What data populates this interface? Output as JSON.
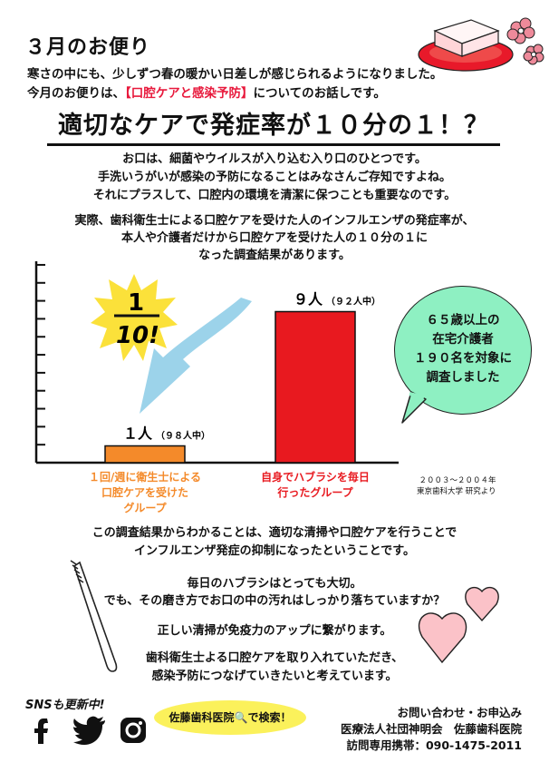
{
  "header": {
    "month_title": "３月のお便り",
    "intro_line1": "寒さの中にも、少しずつ春の暖かい日差しが感じられるようになりました。",
    "intro_line2_pre": "今月のお便りは、",
    "intro_line2_highlight": "【口腔ケアと感染予防】",
    "intro_line2_post": "についてのお話しです。"
  },
  "headline": "適切なケアで発症率が１０分の１！？",
  "body_paragraph1": [
    "お口は、細菌やウイルスが入り込む入り口のひとつです。",
    "手洗いうがいが感染の予防になることはみなさんご存知ですよね。",
    "それにプラスして、口腔内の環境を清潔に保つことも重要なのです。"
  ],
  "body_paragraph2": [
    "実際、歯科衛生士による口腔ケアを受けた人のインフルエンザの発症率が、",
    "本人や介護者だけから口腔ケアを受けた人の１０分の１に",
    "なった調査結果があります。"
  ],
  "burst": {
    "numerator": "1",
    "denominator": "10!"
  },
  "bubble_lines": [
    "６５歳以上の",
    "在宅介護者",
    "１９０名を対象に",
    "調査しました"
  ],
  "chart_data": {
    "type": "bar",
    "categories": [
      "1回/週に衛生士による口腔ケアを受けたグループ",
      "自身でハブラシを毎日行ったグループ"
    ],
    "values": [
      1,
      9
    ],
    "value_labels": [
      "１人",
      "９人"
    ],
    "sub_labels": [
      "（９８人中）",
      "（９２人中）"
    ],
    "category_lines": [
      [
        "１回/週に衛生士による",
        "口腔ケアを受けた",
        "グループ"
      ],
      [
        "自身でハブラシを毎日",
        "行ったグループ"
      ]
    ],
    "colors": [
      "#f48a2a",
      "#e8191f"
    ],
    "ylim": [
      0,
      12
    ],
    "grid": false,
    "ticks": 11
  },
  "source_lines": [
    "２００３～２００４年",
    "東京歯科大学 研究より"
  ],
  "conclusion": [
    "この調査結果からわかることは、適切な清掃や口腔ケアを行うことで",
    "インフルエンザ発症の抑制になったということです。"
  ],
  "brushing": [
    "毎日のハブラシはとっても大切。",
    "でも、その磨き方でお口の中の汚れはしっかり落ちていますか？"
  ],
  "cleaning": "正しい清掃が免疫力のアップに繋がります。",
  "closing": [
    "歯科衛生士よる口腔ケアを取り入れていただき、",
    "感染予防につなげていきたいと考えています。"
  ],
  "sns_banner": "SNSも更新中!",
  "search_bubble": "佐藤歯科医院🔍で検索！",
  "contact": {
    "line1": "お問い合わせ・お申込み",
    "line2": "医療法人社団神明会　佐藤歯科医院",
    "line3": "訪問専用携帯：090-1475-2011"
  },
  "icons": [
    "facebook-icon",
    "twitter-icon",
    "instagram-icon",
    "toothbrush-icon",
    "heart-icon",
    "sakura-icon",
    "sweets-plate-icon"
  ],
  "colors": {
    "accent_red": "#e8193c",
    "bubble_green": "#8ef0c2",
    "burst_yellow": "#fbe13a",
    "arrow_blue": "#9cd3ea",
    "heart_pink": "#fbc2c8"
  }
}
